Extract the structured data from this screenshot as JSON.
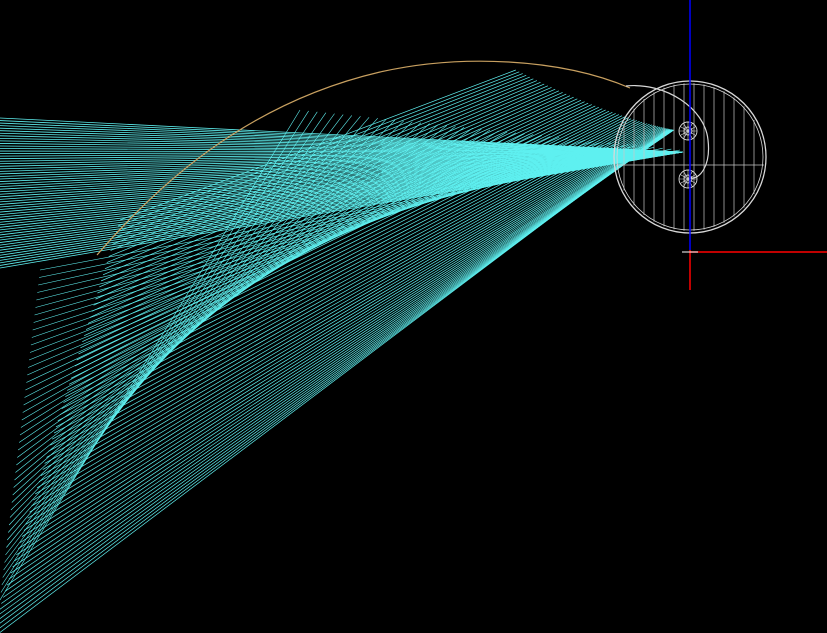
{
  "canvas": {
    "background_color": "#000000"
  },
  "colors": {
    "ray": "#5FF0F0",
    "envelope_curve": "#C8A060",
    "wheel_outline": "#D8D8D8",
    "hatch": "#C8C8C8",
    "x_axis": "#FF0000",
    "y_axis": "#0000FF",
    "crosshair": "#FFFFFF"
  },
  "icons": {
    "ucs": "axis-crosshair-icon",
    "wheel": "circle-wheel-icon"
  }
}
